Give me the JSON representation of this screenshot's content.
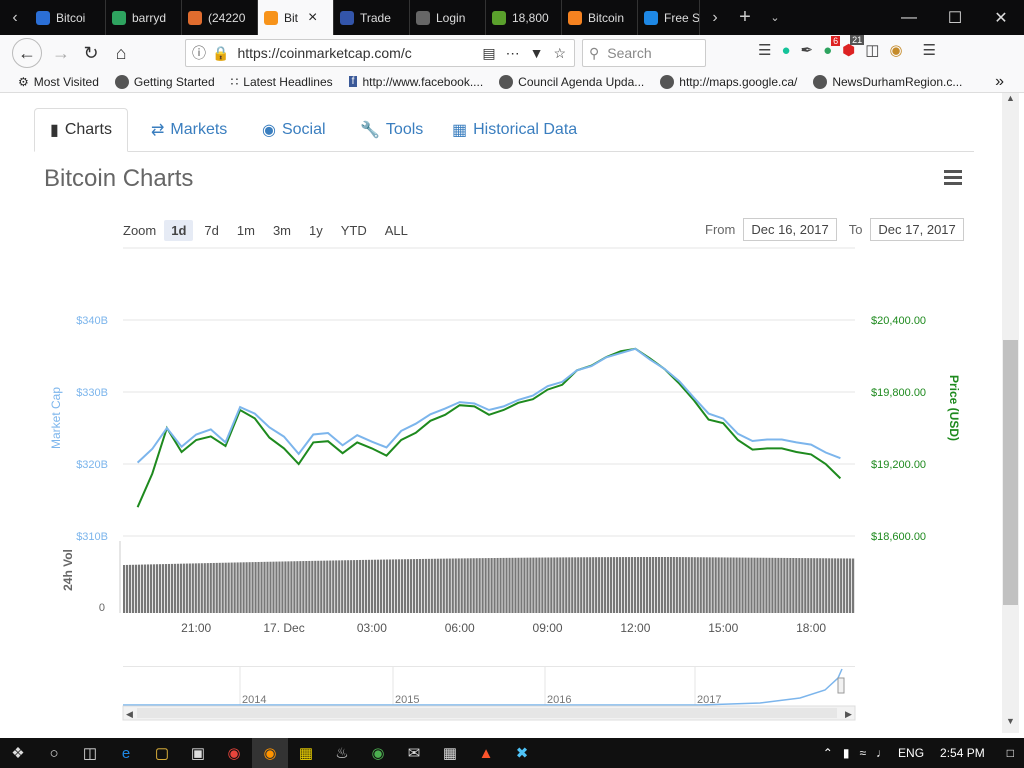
{
  "browser": {
    "tabs": [
      {
        "label": "Bitcoi",
        "color": "#2b6fd6"
      },
      {
        "label": "barryd",
        "color": "#2ea35f"
      },
      {
        "label": "(24220",
        "color": "#e06c2e"
      },
      {
        "label": "Bit",
        "color": "#f7931a",
        "active": true
      },
      {
        "label": "Trade",
        "color": "#3355aa"
      },
      {
        "label": "Login",
        "color": "#666666"
      },
      {
        "label": "18,800",
        "color": "#5aa02c"
      },
      {
        "label": "Bitcoin",
        "color": "#f58220"
      },
      {
        "label": "Free S",
        "color": "#1e88e5"
      }
    ],
    "url": "https://coinmarketcap.com/c",
    "search_placeholder": "Search",
    "badges": {
      "ext1": "6",
      "ext2": "21"
    },
    "bookmarks": [
      "Most Visited",
      "Getting Started",
      "Latest Headlines",
      "http://www.facebook....",
      "Council Agenda Upda...",
      "http://maps.google.ca/",
      "NewsDurhamRegion.c..."
    ]
  },
  "page": {
    "tabs": [
      "Charts",
      "Markets",
      "Social",
      "Tools",
      "Historical Data"
    ],
    "title": "Bitcoin Charts",
    "zoom_label": "Zoom",
    "zoom_options": [
      "1d",
      "7d",
      "1m",
      "3m",
      "1y",
      "YTD",
      "ALL"
    ],
    "from_label": "From",
    "from_date": "Dec 16, 2017",
    "to_label": "To",
    "to_date": "Dec 17, 2017"
  },
  "colors": {
    "marketcap": "#7cb5ec",
    "price": "#1e8a1e",
    "volume": "#777777",
    "link": "#3a7ebf"
  },
  "chart_data": {
    "type": "line",
    "ylabel_left": "Market Cap",
    "ylabel_right": "Price (USD)",
    "volume_label": "24h Vol",
    "left_ticks": [
      "$340B",
      "$330B",
      "$320B",
      "$310B"
    ],
    "right_ticks": [
      "$20,400.00",
      "$19,800.00",
      "$19,200.00",
      "$18,600.00"
    ],
    "ylim_price": [
      18600,
      20400
    ],
    "volume_tick": "0",
    "x_ticks": [
      "21:00",
      "17. Dec",
      "03:00",
      "06:00",
      "09:00",
      "12:00",
      "15:00",
      "18:00"
    ],
    "navigator_years": [
      "2014",
      "2015",
      "2016",
      "2017"
    ],
    "x_hours": [
      19.0,
      19.5,
      20.0,
      20.5,
      21.0,
      21.5,
      22.0,
      22.5,
      23.0,
      23.5,
      24.0,
      24.5,
      25.0,
      25.5,
      26.0,
      26.5,
      27.0,
      27.5,
      28.0,
      28.5,
      29.0,
      29.5,
      30.0,
      30.5,
      31.0,
      31.5,
      32.0,
      32.5,
      33.0,
      33.5,
      34.0,
      34.5,
      35.0,
      35.5,
      36.0,
      36.5,
      37.0,
      37.5,
      38.0,
      38.5,
      39.0,
      39.5,
      40.0,
      40.5,
      41.0,
      41.5,
      42.0,
      42.5,
      43.0
    ],
    "series": [
      {
        "name": "Market Cap",
        "values": [
          320.2,
          322.1,
          325.0,
          322.4,
          324.1,
          324.8,
          323.0,
          327.9,
          327.0,
          325.1,
          323.8,
          321.4,
          324.1,
          324.3,
          322.6,
          324.0,
          323.1,
          322.3,
          324.6,
          325.6,
          326.9,
          327.7,
          328.6,
          328.4,
          327.5,
          328.0,
          328.9,
          329.5,
          330.8,
          331.4,
          333.0,
          333.6,
          334.8,
          335.4,
          336.0,
          334.5,
          333.2,
          331.5,
          329.2,
          327.0,
          326.3,
          324.2,
          323.2,
          323.4,
          323.4,
          323.0,
          322.7,
          321.6,
          320.8
        ]
      },
      {
        "name": "Price",
        "values": [
          18840,
          19120,
          19500,
          19300,
          19400,
          19430,
          19350,
          19650,
          19580,
          19420,
          19330,
          19200,
          19380,
          19390,
          19290,
          19380,
          19330,
          19270,
          19400,
          19460,
          19560,
          19610,
          19690,
          19680,
          19610,
          19650,
          19710,
          19740,
          19820,
          19860,
          19980,
          20020,
          20090,
          20140,
          20160,
          20080,
          19990,
          19870,
          19730,
          19570,
          19540,
          19400,
          19320,
          19330,
          19330,
          19300,
          19280,
          19200,
          19080
        ]
      }
    ]
  },
  "taskbar": {
    "lang": "ENG",
    "time": "2:54 PM"
  }
}
